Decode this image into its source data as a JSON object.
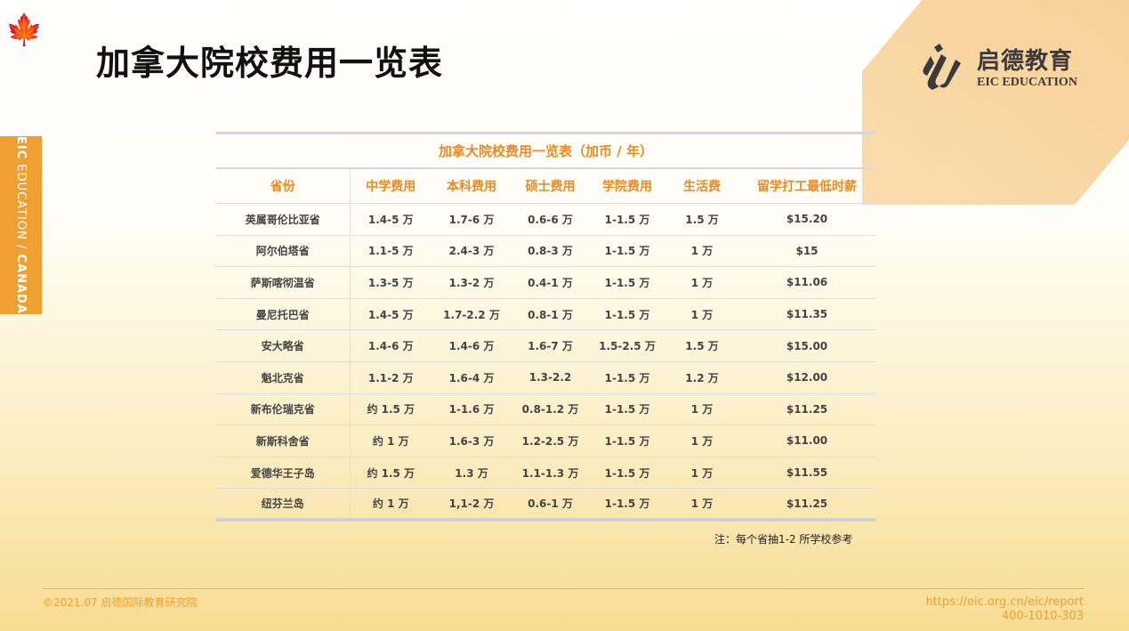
{
  "page": {
    "title": "加拿大院校费用一览表"
  },
  "logo": {
    "cn": "启德教育",
    "en": "EIC EDUCATION"
  },
  "sidetab": {
    "part1": "EIC",
    "part2": " EDUCATION / ",
    "part3": "CANADA"
  },
  "table": {
    "caption": "加拿大院校费用一览表（加币 / 年）",
    "headers": [
      "省份",
      "中学费用",
      "本科费用",
      "硕士费用",
      "学院费用",
      "生活费",
      "留学打工最低时薪"
    ],
    "rows": [
      [
        "英属哥伦比亚省",
        "1.4-5 万",
        "1.7-6 万",
        "0.6-6 万",
        "1-1.5 万",
        "1.5 万",
        "$15.20"
      ],
      [
        "阿尔伯塔省",
        "1.1-5 万",
        "2.4-3 万",
        "0.8-3 万",
        "1-1.5 万",
        "1 万",
        "$15"
      ],
      [
        "萨斯喀彻温省",
        "1.3-5 万",
        "1.3-2 万",
        "0.4-1 万",
        "1-1.5 万",
        "1 万",
        "$11.06"
      ],
      [
        "曼尼托巴省",
        "1.4-5 万",
        "1.7-2.2 万",
        "0.8-1 万",
        "1-1.5 万",
        "1 万",
        "$11.35"
      ],
      [
        "安大略省",
        "1.4-6 万",
        "1.4-6 万",
        "1.6-7 万",
        "1.5-2.5 万",
        "1.5 万",
        "$15.00"
      ],
      [
        "魁北克省",
        "1.1-2 万",
        "1.6-4 万",
        "1.3-2.2",
        "1-1.5 万",
        "1.2 万",
        "$12.00"
      ],
      [
        "新布伦瑞克省",
        "约 1.5 万",
        "1-1.6 万",
        "0.8-1.2 万",
        "1-1.5 万",
        "1 万",
        "$11.25"
      ],
      [
        "新斯科舍省",
        "约 1 万",
        "1.6-3 万",
        "1.2-2.5 万",
        "1-1.5 万",
        "1 万",
        "$11.00"
      ],
      [
        "爱德华王子岛",
        "约 1.5 万",
        "1.3 万",
        "1.1-1.3 万",
        "1-1.5 万",
        "1 万",
        "$11.55"
      ],
      [
        "纽芬兰岛",
        "约 1 万",
        "1,1-2 万",
        "0.6-1 万",
        "1-1.5 万",
        "1 万",
        "$11.25"
      ]
    ]
  },
  "note": "注：每个省抽1-2 所学校参考",
  "footer": {
    "copyright": "©2021.07 启德国际教育研究院",
    "url": "https://eic.org.cn/eic/report",
    "phone": "400-1010-303"
  },
  "colors": {
    "accent": "#f0a030",
    "header_text": "#ec8a1e"
  }
}
